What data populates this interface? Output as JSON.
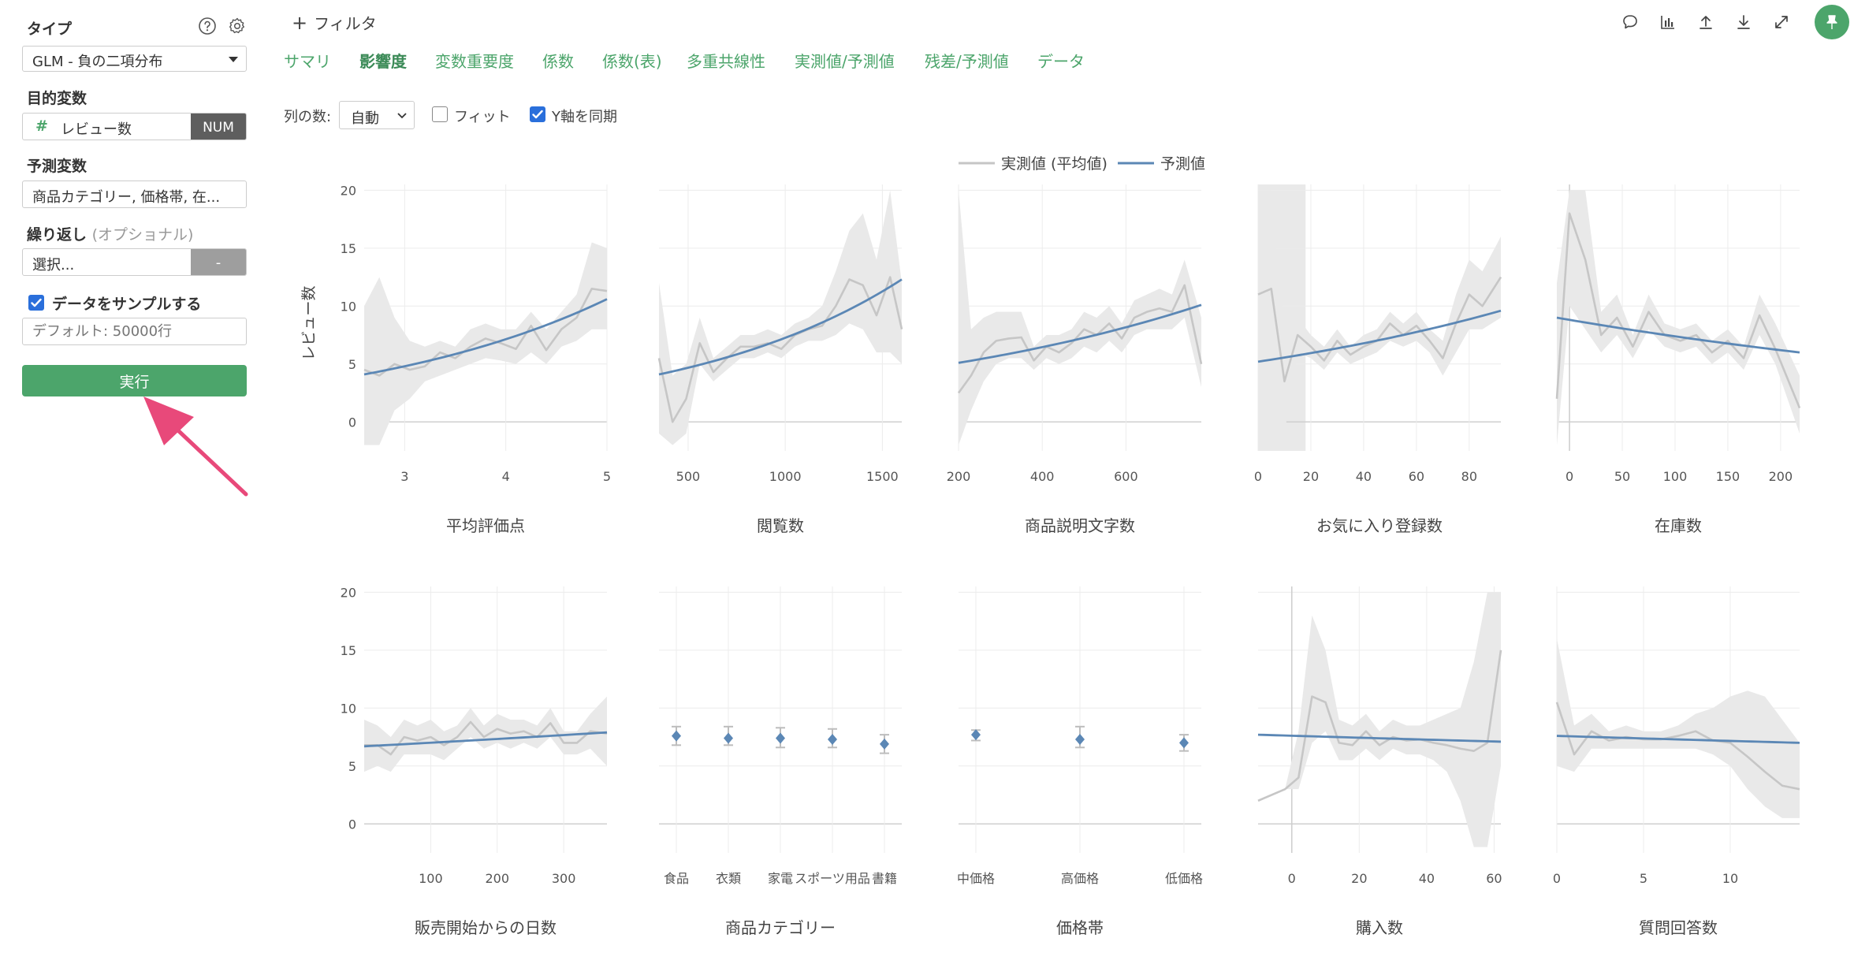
{
  "sidebar": {
    "type_label": "タイプ",
    "type_value": "GLM - 負の二項分布",
    "target_label": "目的変数",
    "target_value": "レビュー数",
    "target_badge": "NUM",
    "target_hash": "#",
    "predictor_label": "予測変数",
    "predictor_value": "商品カテゴリー, 価格帯, 在...",
    "repeat_label": "繰り返し",
    "repeat_optional": "(オプショナル)",
    "repeat_value": "選択...",
    "repeat_button": "-",
    "sample_label": "データをサンプルする",
    "sample_checked": true,
    "sample_placeholder": "デフォルト: 50000行",
    "run_label": "実行",
    "help_icon": "question-circle-icon",
    "settings_icon": "gear-icon"
  },
  "header": {
    "filter_label": "フィルタ",
    "tabs": [
      "サマリ",
      "影響度",
      "変数重要度",
      "係数",
      "係数(表)",
      "多重共線性",
      "実測値/予測値",
      "残差/予測値",
      "データ"
    ],
    "active_tab": "影響度",
    "toolbar_icons": [
      "comment-icon",
      "chart-icon",
      "upload-icon",
      "download-icon",
      "expand-icon",
      "pin-icon"
    ]
  },
  "controls": {
    "columns_label": "列の数:",
    "columns_value": "自動",
    "fit_label": "フィット",
    "fit_checked": false,
    "sync_label": "Y軸を同期",
    "sync_checked": true
  },
  "colors": {
    "accent": "#4ca56b",
    "predicted": "#5b87b5",
    "actual": "#c6c6c6",
    "band": "#e9e9e9",
    "pin_bg": "#4ca56b",
    "arrow": "#e8497a"
  },
  "chart_data": {
    "type": "line",
    "legend": [
      "実測値 (平均値)",
      "予測値"
    ],
    "legend_placement": "top-center",
    "ylabel": "レビュー数",
    "ylim": [
      -2.5,
      20.5
    ],
    "yticks": [
      0,
      5,
      10,
      15,
      20
    ],
    "grid": true,
    "panels": [
      {
        "title": "平均評価点",
        "kind": "line",
        "xlim": [
          2.6,
          5.0
        ],
        "xticks": [
          3,
          4,
          5
        ],
        "actual": {
          "x": [
            2.6,
            2.75,
            2.9,
            3.05,
            3.2,
            3.35,
            3.5,
            3.65,
            3.8,
            3.95,
            4.1,
            4.25,
            4.4,
            4.55,
            4.7,
            4.85,
            5.0
          ],
          "y": [
            4.5,
            4.0,
            5.0,
            4.5,
            4.8,
            6.0,
            5.5,
            6.5,
            7.2,
            6.8,
            6.3,
            8.3,
            6.2,
            8.0,
            9.0,
            11.5,
            11.3
          ]
        },
        "band_lo": [
          -2.0,
          -2.0,
          1.0,
          2.0,
          3.5,
          4.0,
          4.5,
          5.0,
          5.5,
          5.3,
          5.0,
          6.0,
          5.0,
          6.5,
          7.0,
          8.0,
          8.0
        ],
        "band_hi": [
          10.0,
          12.5,
          9.0,
          7.0,
          6.5,
          7.0,
          6.5,
          8.0,
          8.5,
          8.0,
          8.0,
          9.5,
          8.0,
          9.5,
          11.0,
          15.5,
          15.0
        ],
        "predicted": {
          "x": [
            2.6,
            5.0
          ],
          "y0": 4.1,
          "y1": 10.6,
          "curve": "exp"
        }
      },
      {
        "title": "閲覧数",
        "kind": "line",
        "xlim": [
          350,
          1600
        ],
        "xticks": [
          500,
          1000,
          1500
        ],
        "actual": {
          "x": [
            350,
            420,
            490,
            560,
            630,
            700,
            770,
            840,
            910,
            980,
            1050,
            1120,
            1190,
            1260,
            1330,
            1400,
            1470,
            1540,
            1600
          ],
          "y": [
            5.5,
            0.0,
            2.0,
            6.8,
            4.3,
            5.5,
            6.5,
            6.5,
            6.8,
            6.3,
            7.5,
            8.0,
            8.3,
            10.0,
            12.3,
            11.8,
            9.2,
            12.5,
            8.0
          ]
        },
        "band_lo": [
          -1.0,
          -2.0,
          -1.0,
          5.0,
          3.5,
          4.5,
          5.5,
          5.5,
          6.0,
          5.5,
          6.5,
          7.0,
          7.0,
          7.5,
          8.5,
          8.0,
          6.0,
          6.0,
          5.0
        ],
        "band_hi": [
          12.0,
          4.0,
          5.0,
          9.0,
          5.5,
          6.5,
          7.5,
          7.5,
          8.0,
          7.5,
          8.5,
          9.0,
          10.0,
          13.0,
          16.5,
          18.0,
          14.0,
          20.0,
          12.0
        ],
        "predicted": {
          "x": [
            350,
            1600
          ],
          "y0": 4.1,
          "y1": 12.3,
          "curve": "exp"
        }
      },
      {
        "title": "商品説明文字数",
        "kind": "line",
        "xlim": [
          200,
          780
        ],
        "xticks": [
          200,
          400,
          600
        ],
        "actual": {
          "x": [
            200,
            230,
            260,
            290,
            320,
            350,
            380,
            410,
            440,
            470,
            500,
            530,
            560,
            590,
            620,
            650,
            680,
            710,
            740,
            780
          ],
          "y": [
            2.5,
            4.0,
            6.0,
            7.0,
            7.2,
            7.3,
            5.3,
            6.5,
            6.0,
            6.8,
            8.0,
            7.5,
            8.5,
            7.2,
            9.0,
            9.5,
            9.8,
            9.5,
            11.8,
            5.0
          ]
        },
        "band_lo": [
          -2.0,
          1.0,
          3.5,
          5.0,
          5.5,
          5.5,
          4.5,
          5.5,
          5.0,
          5.5,
          6.5,
          6.0,
          7.0,
          6.0,
          7.5,
          8.0,
          8.0,
          8.0,
          9.0,
          3.0
        ],
        "band_hi": [
          20.0,
          8.0,
          9.0,
          9.5,
          9.5,
          9.5,
          6.5,
          7.5,
          7.5,
          8.0,
          9.5,
          9.0,
          10.0,
          8.5,
          10.5,
          11.0,
          11.5,
          11.0,
          14.0,
          9.0
        ],
        "predicted": {
          "x": [
            200,
            780
          ],
          "y0": 5.1,
          "y1": 10.1,
          "curve": "exp"
        }
      },
      {
        "title": "お気に入り登録数",
        "kind": "line",
        "xlim": [
          0,
          92
        ],
        "xticks": [
          0,
          20,
          40,
          60,
          80
        ],
        "shade": [
          0,
          18
        ],
        "actual": {
          "x": [
            0,
            5,
            10,
            15,
            20,
            25,
            30,
            35,
            40,
            45,
            50,
            55,
            60,
            65,
            70,
            75,
            80,
            85,
            92
          ],
          "y": [
            11.0,
            11.5,
            3.5,
            7.5,
            6.5,
            5.3,
            7.0,
            5.8,
            6.5,
            7.0,
            8.5,
            7.5,
            8.3,
            7.0,
            5.5,
            8.5,
            11.0,
            10.0,
            12.5
          ]
        },
        "band_lo": [
          -2.0,
          -2.0,
          -1.0,
          6.0,
          5.5,
          4.5,
          6.0,
          5.0,
          5.5,
          6.0,
          7.0,
          6.5,
          7.0,
          6.0,
          4.0,
          6.0,
          8.0,
          8.0,
          9.0
        ],
        "band_hi": [
          20.0,
          20.0,
          8.0,
          9.0,
          7.5,
          6.5,
          8.0,
          6.5,
          7.5,
          8.0,
          9.5,
          8.5,
          9.5,
          8.0,
          7.0,
          11.0,
          14.0,
          13.0,
          16.0
        ],
        "predicted": {
          "x": [
            0,
            92
          ],
          "y0": 5.2,
          "y1": 9.6,
          "curve": "exp"
        }
      },
      {
        "title": "在庫数",
        "kind": "line",
        "xlim": [
          -12,
          218
        ],
        "xticks": [
          0,
          50,
          100,
          150,
          200
        ],
        "actual": {
          "x": [
            -12,
            0,
            15,
            30,
            45,
            60,
            75,
            90,
            105,
            120,
            135,
            150,
            165,
            180,
            195,
            218
          ],
          "y": [
            2.0,
            18.0,
            14.0,
            7.5,
            9.0,
            6.5,
            9.5,
            7.5,
            7.0,
            7.5,
            6.0,
            7.0,
            5.5,
            9.2,
            6.3,
            1.2
          ]
        },
        "band_lo": [
          -2.0,
          10.0,
          8.0,
          6.0,
          7.5,
          5.5,
          8.0,
          6.5,
          6.0,
          6.5,
          5.0,
          6.0,
          4.5,
          7.5,
          5.0,
          -1.0
        ],
        "band_hi": [
          12.0,
          20.0,
          20.0,
          9.5,
          11.0,
          7.5,
          11.0,
          8.5,
          8.0,
          8.5,
          7.0,
          8.0,
          6.5,
          11.0,
          8.5,
          4.0
        ],
        "predicted": {
          "x": [
            -12,
            218
          ],
          "y0": 9.0,
          "y1": 6.0,
          "curve": "exp"
        }
      },
      {
        "title": "販売開始からの日数",
        "kind": "line",
        "xlim": [
          0,
          365
        ],
        "xticks": [
          100,
          200,
          300
        ],
        "actual": {
          "x": [
            0,
            20,
            40,
            60,
            80,
            100,
            120,
            140,
            160,
            180,
            200,
            220,
            240,
            260,
            280,
            300,
            320,
            340,
            365
          ],
          "y": [
            6.8,
            6.8,
            6.0,
            7.5,
            7.2,
            7.5,
            6.8,
            7.5,
            8.8,
            7.5,
            8.2,
            7.8,
            8.0,
            7.5,
            8.7,
            7.0,
            7.0,
            8.0,
            7.8
          ]
        },
        "band_lo": [
          4.5,
          5.0,
          4.5,
          6.0,
          6.0,
          6.0,
          5.5,
          6.5,
          7.5,
          6.5,
          7.0,
          6.5,
          7.0,
          6.5,
          7.5,
          6.0,
          6.0,
          6.5,
          5.0
        ],
        "band_hi": [
          9.0,
          8.5,
          7.5,
          9.0,
          8.5,
          9.0,
          8.0,
          8.5,
          10.0,
          8.5,
          9.5,
          9.0,
          9.0,
          8.5,
          10.0,
          8.0,
          8.0,
          9.5,
          11.0
        ],
        "predicted": {
          "x": [
            0,
            365
          ],
          "y0": 6.7,
          "y1": 7.9,
          "curve": "exp"
        }
      },
      {
        "title": "商品カテゴリー",
        "kind": "category",
        "categories": [
          "食品",
          "衣類",
          "家電",
          "スポーツ用品",
          "書籍"
        ],
        "values": [
          7.6,
          7.4,
          7.4,
          7.3,
          6.9
        ],
        "lo": [
          6.8,
          6.8,
          6.6,
          6.6,
          6.1
        ],
        "hi": [
          8.4,
          8.4,
          8.3,
          8.2,
          7.7
        ]
      },
      {
        "title": "価格帯",
        "kind": "category",
        "categories": [
          "中価格",
          "高価格",
          "低価格"
        ],
        "values": [
          7.7,
          7.3,
          7.0
        ],
        "lo": [
          7.2,
          6.6,
          6.3
        ],
        "hi": [
          8.1,
          8.4,
          7.7
        ]
      },
      {
        "title": "購入数",
        "kind": "line",
        "xlim": [
          -10,
          62
        ],
        "xticks": [
          0,
          20,
          40,
          60
        ],
        "actual": {
          "x": [
            -10,
            -2,
            2,
            6,
            10,
            14,
            18,
            22,
            26,
            30,
            34,
            38,
            42,
            46,
            50,
            54,
            58,
            62
          ],
          "y": [
            2.0,
            3.0,
            4.0,
            11.0,
            10.5,
            7.0,
            6.8,
            8.0,
            6.8,
            7.5,
            7.2,
            7.3,
            7.0,
            6.8,
            6.5,
            6.3,
            7.0,
            15.0
          ]
        },
        "band_lo": [
          2.0,
          3.0,
          3.0,
          7.0,
          8.0,
          5.5,
          5.5,
          6.5,
          5.5,
          6.5,
          6.0,
          6.0,
          5.5,
          4.5,
          2.0,
          -2.0,
          -2.0,
          5.0
        ],
        "band_hi": [
          2.0,
          3.0,
          8.0,
          18.0,
          15.0,
          9.0,
          8.5,
          9.5,
          8.0,
          9.0,
          8.5,
          8.5,
          9.0,
          9.5,
          10.0,
          14.0,
          20.0,
          20.0
        ],
        "predicted": {
          "x": [
            -10,
            62
          ],
          "y0": 7.7,
          "y1": 7.1,
          "curve": "exp"
        }
      },
      {
        "title": "質問回答数",
        "kind": "line",
        "xlim": [
          0,
          14
        ],
        "xticks": [
          0,
          5,
          10
        ],
        "actual": {
          "x": [
            0,
            1,
            2,
            3,
            4,
            5,
            6,
            7,
            8,
            9,
            10,
            11,
            12,
            13,
            14
          ],
          "y": [
            10.5,
            6.0,
            8.0,
            7.2,
            7.5,
            7.3,
            7.3,
            7.6,
            8.0,
            7.2,
            7.0,
            5.8,
            4.5,
            3.3,
            3.0
          ]
        },
        "band_lo": [
          5.0,
          4.5,
          6.5,
          6.5,
          6.5,
          6.5,
          6.5,
          6.5,
          6.5,
          6.0,
          5.0,
          3.0,
          1.5,
          0.5,
          0.5
        ],
        "band_hi": [
          16.0,
          8.5,
          9.5,
          8.0,
          8.5,
          8.0,
          8.0,
          8.5,
          9.5,
          10.0,
          11.0,
          11.5,
          11.0,
          9.0,
          7.0
        ],
        "predicted": {
          "x": [
            0,
            14
          ],
          "y0": 7.6,
          "y1": 7.0,
          "curve": "exp"
        }
      }
    ]
  }
}
